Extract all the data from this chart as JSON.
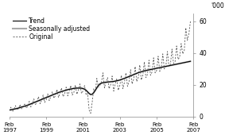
{
  "ylabel": "'000",
  "ylim": [
    0,
    65
  ],
  "yticks": [
    0,
    20,
    40,
    60
  ],
  "ytick_labels": [
    "0",
    "20",
    "40",
    "60"
  ],
  "xtick_dates": [
    "Feb\n1997",
    "Feb\n1999",
    "Feb\n2001",
    "Feb\n2003",
    "Feb\n2005",
    "Feb\n2007"
  ],
  "xtick_positions": [
    0,
    24,
    48,
    72,
    96,
    120
  ],
  "trend_color": "#000000",
  "sa_color": "#aaaaaa",
  "orig_color": "#555555",
  "trend_lw": 0.8,
  "sa_lw": 1.5,
  "orig_lw": 0.6,
  "legend_labels": [
    "Trend",
    "Seasonally adjusted",
    "Original"
  ],
  "background_color": "#ffffff",
  "trend_data": [
    4.0,
    4.2,
    4.4,
    4.6,
    4.8,
    5.0,
    5.3,
    5.6,
    5.9,
    6.2,
    6.5,
    6.8,
    7.1,
    7.5,
    7.9,
    8.3,
    8.7,
    9.1,
    9.5,
    9.9,
    10.3,
    10.7,
    11.1,
    11.5,
    11.9,
    12.3,
    12.7,
    13.1,
    13.5,
    13.9,
    14.3,
    14.7,
    15.1,
    15.4,
    15.7,
    16.0,
    16.3,
    16.6,
    16.9,
    17.1,
    17.3,
    17.5,
    17.7,
    17.8,
    17.9,
    17.9,
    17.9,
    17.8,
    17.6,
    17.2,
    16.5,
    15.5,
    14.5,
    13.8,
    14.0,
    15.0,
    16.5,
    18.0,
    19.5,
    20.5,
    21.0,
    21.3,
    21.5,
    21.6,
    21.7,
    21.8,
    21.9,
    22.0,
    22.1,
    22.3,
    22.5,
    22.7,
    23.0,
    23.3,
    23.7,
    24.0,
    24.4,
    24.8,
    25.2,
    25.6,
    26.0,
    26.4,
    26.8,
    27.2,
    27.6,
    27.9,
    28.2,
    28.5,
    28.8,
    29.0,
    29.2,
    29.4,
    29.6,
    29.8,
    30.0,
    30.2,
    30.4,
    30.6,
    30.8,
    31.0,
    31.2,
    31.4,
    31.6,
    31.8,
    32.0,
    32.2,
    32.4,
    32.6,
    32.8,
    33.0,
    33.2,
    33.4,
    33.6,
    33.8,
    34.0,
    34.2,
    34.4,
    34.6,
    34.8
  ],
  "sa_data": [
    4.0,
    4.2,
    4.4,
    4.6,
    4.8,
    5.0,
    5.3,
    5.6,
    5.9,
    6.2,
    6.5,
    6.8,
    7.1,
    7.5,
    7.9,
    8.3,
    8.7,
    9.1,
    9.5,
    9.9,
    10.3,
    10.7,
    11.1,
    11.5,
    11.9,
    12.3,
    12.7,
    13.1,
    13.5,
    13.9,
    14.3,
    14.7,
    15.1,
    15.4,
    15.7,
    16.0,
    16.3,
    16.6,
    16.9,
    17.1,
    17.3,
    17.5,
    17.7,
    17.8,
    17.9,
    17.9,
    17.9,
    17.8,
    17.6,
    17.2,
    16.5,
    15.5,
    14.5,
    13.8,
    14.0,
    15.0,
    16.5,
    18.0,
    19.5,
    20.5,
    21.0,
    21.3,
    21.5,
    21.6,
    21.7,
    21.8,
    21.9,
    22.0,
    22.1,
    22.3,
    22.5,
    22.7,
    23.0,
    23.3,
    23.7,
    24.0,
    24.4,
    24.8,
    25.2,
    25.6,
    26.0,
    26.4,
    26.8,
    27.2,
    27.6,
    27.9,
    28.2,
    28.5,
    28.8,
    29.0,
    29.2,
    29.4,
    29.6,
    29.8,
    30.0,
    30.2,
    30.4,
    30.6,
    30.8,
    31.0,
    31.2,
    31.4,
    31.6,
    31.8,
    32.0,
    32.2,
    32.4,
    32.6,
    32.8,
    33.0,
    33.2,
    33.4,
    33.6,
    33.8,
    34.0,
    34.2,
    34.4,
    34.6,
    34.8
  ],
  "orig_data": [
    3.5,
    5.8,
    3.0,
    4.5,
    6.8,
    4.0,
    5.0,
    7.5,
    4.8,
    6.2,
    7.8,
    5.2,
    6.5,
    9.5,
    6.0,
    8.0,
    11.0,
    7.5,
    9.0,
    12.5,
    8.0,
    10.2,
    13.5,
    8.8,
    10.5,
    14.2,
    10.0,
    12.5,
    15.5,
    11.5,
    13.0,
    17.0,
    12.0,
    14.5,
    18.0,
    12.5,
    14.0,
    18.5,
    13.0,
    15.5,
    19.5,
    13.5,
    15.0,
    19.8,
    14.0,
    16.5,
    20.5,
    14.5,
    16.0,
    19.5,
    13.5,
    14.5,
    4.0,
    2.0,
    9.0,
    17.5,
    15.5,
    24.0,
    18.5,
    19.5,
    21.5,
    27.5,
    18.0,
    22.0,
    24.5,
    17.5,
    20.0,
    25.5,
    16.0,
    20.5,
    24.0,
    16.5,
    19.5,
    26.0,
    17.5,
    21.5,
    27.5,
    19.0,
    22.0,
    29.5,
    20.5,
    23.5,
    31.5,
    22.0,
    24.5,
    32.5,
    23.0,
    26.0,
    34.5,
    24.5,
    26.5,
    35.5,
    26.0,
    28.0,
    37.0,
    27.5,
    29.0,
    38.0,
    28.5,
    30.5,
    39.5,
    30.0,
    31.5,
    41.0,
    31.5,
    33.0,
    42.5,
    33.5,
    34.5,
    44.5,
    36.0,
    37.5,
    46.0,
    39.5,
    41.5,
    56.0,
    48.0,
    52.0,
    60.0
  ]
}
